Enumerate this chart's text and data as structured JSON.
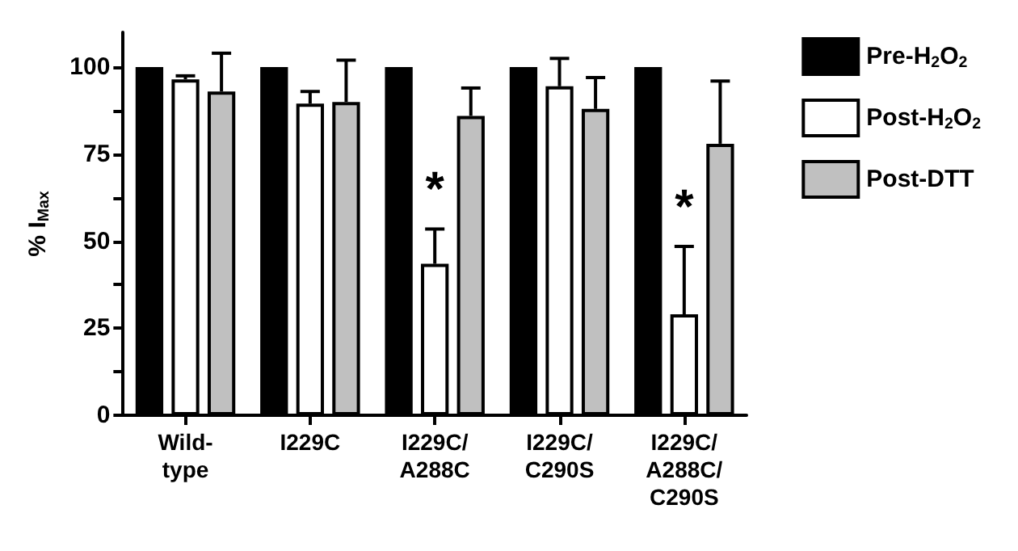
{
  "chart_data": {
    "type": "bar",
    "ylabel": "% I$_{Max}$",
    "categories": [
      "Wild-\ntype",
      "I229C",
      "I229C/\nA288C",
      "I229C/\nC290S",
      "I229C/\nA288C/\nC290S"
    ],
    "series": [
      {
        "name": "Pre-H$_{2}$O$_{2}$",
        "color": "#000000",
        "values": [
          100,
          100,
          100,
          100,
          100
        ]
      },
      {
        "name": "Post-H$_{2}$O$_{2}$",
        "color": "#ffffff",
        "values": [
          96.5,
          89.5,
          43.5,
          94.5,
          29
        ],
        "errors": [
          [
            96.5,
            97.5
          ],
          [
            89.5,
            93
          ],
          [
            43.5,
            53.5
          ],
          [
            94.5,
            102.5
          ],
          [
            29,
            48.5
          ]
        ]
      },
      {
        "name": "Post-DTT",
        "color": "#c0c0c0",
        "values": [
          93,
          90,
          86,
          88,
          78
        ],
        "errors": [
          [
            93,
            104
          ],
          [
            90,
            102
          ],
          [
            86,
            94
          ],
          [
            88,
            97
          ],
          [
            78,
            96
          ]
        ]
      }
    ],
    "ylim": [
      0,
      110
    ],
    "yticks": [
      0,
      {
        "value": 12.5,
        "label": null
      },
      25,
      {
        "value": 37.5,
        "label": null
      },
      50,
      {
        "value": 62.5,
        "label": null
      },
      75,
      {
        "value": 87.5,
        "label": null
      },
      100
    ],
    "annotations": [
      {
        "text": "*",
        "x": "I229C/\nA288C",
        "y": 53.5
      },
      {
        "text": "*",
        "x": "I229C/\nA288C/\nC290S",
        "y": 48.5
      }
    ],
    "grid": false,
    "legend": "right"
  }
}
